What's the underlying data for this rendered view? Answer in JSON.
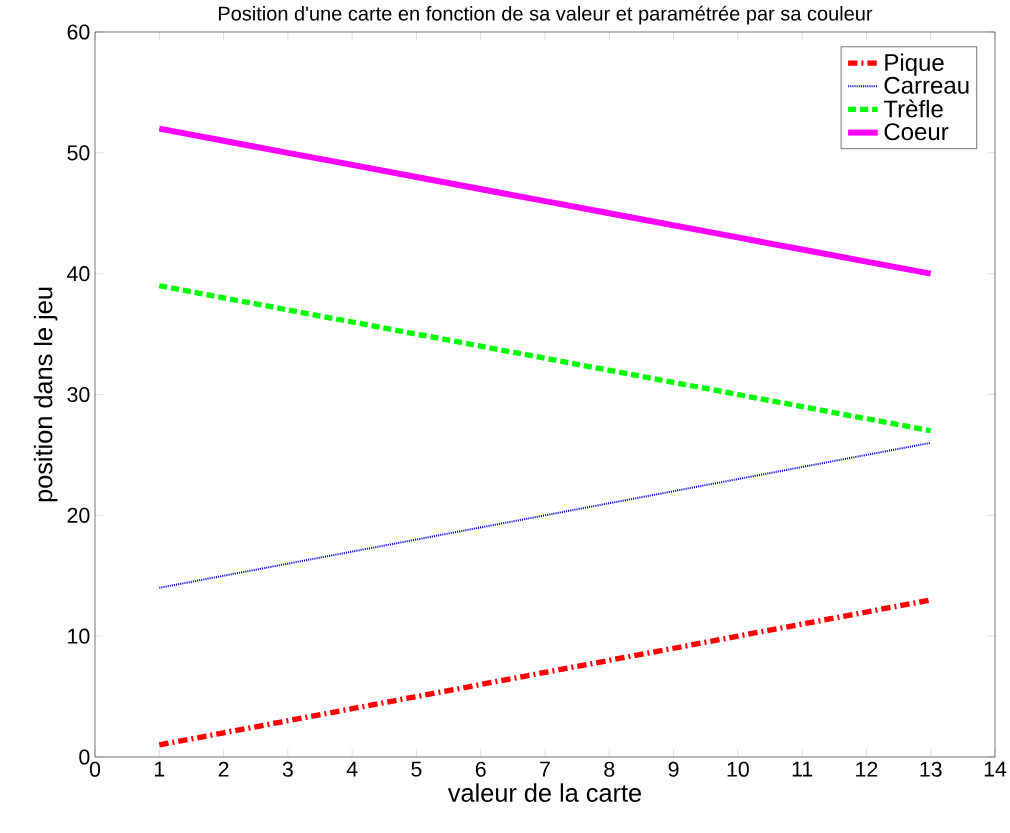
{
  "chart_data": {
    "type": "line",
    "title": "Position d'une carte en fonction de sa valeur et paramétrée par sa couleur",
    "xlabel": "valeur de la carte",
    "ylabel": "position dans le jeu",
    "x": [
      1,
      2,
      3,
      4,
      5,
      6,
      7,
      8,
      9,
      10,
      11,
      12,
      13
    ],
    "series": [
      {
        "name": "Pique",
        "color": "#ff0000",
        "line_style": "dashdot",
        "values": [
          1,
          2,
          3,
          4,
          5,
          6,
          7,
          8,
          9,
          10,
          11,
          12,
          13
        ]
      },
      {
        "name": "Carreau",
        "color": "#0000cc",
        "line_style": "dotted",
        "values": [
          14,
          15,
          16,
          17,
          18,
          19,
          20,
          21,
          22,
          23,
          24,
          25,
          26
        ]
      },
      {
        "name": "Trèfle",
        "color": "#00ff00",
        "line_style": "dashed",
        "values": [
          39,
          38,
          37,
          36,
          35,
          34,
          33,
          32,
          31,
          30,
          29,
          28,
          27
        ]
      },
      {
        "name": "Coeur",
        "color": "#ff00ff",
        "line_style": "solid",
        "values": [
          52,
          51,
          50,
          49,
          48,
          47,
          46,
          45,
          44,
          43,
          42,
          41,
          40
        ]
      }
    ],
    "xlim": [
      0,
      14
    ],
    "xticks": [
      0,
      1,
      2,
      3,
      4,
      5,
      6,
      7,
      8,
      9,
      10,
      11,
      12,
      13,
      14
    ],
    "ylim": [
      0,
      60
    ],
    "yticks": [
      0,
      10,
      20,
      30,
      40,
      50,
      60
    ],
    "legend": "top right",
    "grid": false,
    "marker": "none"
  }
}
